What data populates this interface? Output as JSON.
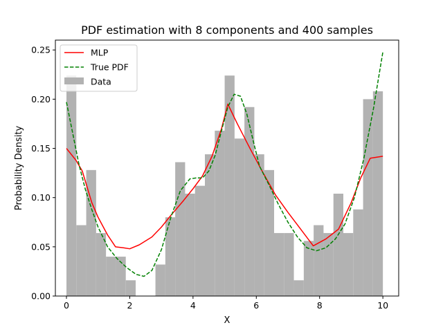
{
  "chart_data": {
    "type": "histogram+line",
    "title": "PDF estimation with 8 components and 400 samples",
    "xlabel": "X",
    "ylabel": "Probability Density",
    "xlim": [
      -0.35,
      10.5
    ],
    "ylim": [
      0.0,
      0.26
    ],
    "xticks": [
      0,
      2,
      4,
      6,
      8,
      10
    ],
    "xtick_labels": [
      "0",
      "2",
      "4",
      "6",
      "8",
      "10"
    ],
    "yticks": [
      0.0,
      0.05,
      0.1,
      0.15,
      0.2,
      0.25
    ],
    "ytick_labels": [
      "0.00",
      "0.05",
      "0.10",
      "0.15",
      "0.20",
      "0.25"
    ],
    "grid": false,
    "legend_position": "top-left",
    "legend": [
      "MLP",
      "True PDF",
      "Data"
    ],
    "histogram": {
      "name": "Data",
      "color": "#b2b2b2",
      "bin_start": 0.0,
      "bin_width": 0.3125,
      "values": [
        0.224,
        0.072,
        0.128,
        0.064,
        0.04,
        0.04,
        0.016,
        0.0,
        0.0,
        0.032,
        0.08,
        0.136,
        0.104,
        0.112,
        0.144,
        0.168,
        0.224,
        0.16,
        0.192,
        0.144,
        0.128,
        0.064,
        0.064,
        0.016,
        0.056,
        0.072,
        0.064,
        0.104,
        0.064,
        0.088,
        0.2,
        0.208
      ]
    },
    "series": [
      {
        "name": "MLP",
        "color": "#ff0000",
        "style": "solid",
        "x": [
          0.0,
          0.3,
          0.5,
          0.8,
          1.0,
          1.3,
          1.55,
          1.8,
          2.0,
          2.3,
          2.7,
          3.0,
          3.3,
          3.7,
          4.0,
          4.3,
          4.6,
          4.9,
          5.1,
          5.4,
          5.8,
          6.2,
          6.6,
          7.0,
          7.4,
          7.8,
          8.2,
          8.6,
          9.0,
          9.3,
          9.6,
          10.0
        ],
        "y": [
          0.15,
          0.138,
          0.127,
          0.095,
          0.08,
          0.062,
          0.05,
          0.049,
          0.048,
          0.052,
          0.06,
          0.07,
          0.082,
          0.097,
          0.109,
          0.122,
          0.142,
          0.17,
          0.195,
          0.175,
          0.15,
          0.126,
          0.103,
          0.085,
          0.068,
          0.051,
          0.058,
          0.068,
          0.095,
          0.12,
          0.14,
          0.142
        ]
      },
      {
        "name": "True PDF",
        "color": "#008000",
        "style": "dashed",
        "x": [
          0.0,
          0.2,
          0.4,
          0.6,
          0.8,
          1.0,
          1.3,
          1.6,
          1.9,
          2.2,
          2.45,
          2.7,
          3.0,
          3.3,
          3.6,
          3.9,
          4.1,
          4.3,
          4.5,
          4.7,
          4.9,
          5.1,
          5.3,
          5.5,
          5.7,
          5.9,
          6.1,
          6.4,
          6.7,
          7.0,
          7.3,
          7.6,
          7.9,
          8.2,
          8.5,
          8.8,
          9.1,
          9.4,
          9.7,
          10.0
        ],
        "y": [
          0.197,
          0.165,
          0.133,
          0.108,
          0.088,
          0.07,
          0.05,
          0.038,
          0.029,
          0.022,
          0.02,
          0.026,
          0.047,
          0.08,
          0.107,
          0.119,
          0.12,
          0.12,
          0.127,
          0.143,
          0.168,
          0.192,
          0.205,
          0.203,
          0.185,
          0.158,
          0.132,
          0.113,
          0.093,
          0.075,
          0.06,
          0.049,
          0.046,
          0.049,
          0.058,
          0.073,
          0.1,
          0.14,
          0.19,
          0.248
        ]
      }
    ]
  }
}
